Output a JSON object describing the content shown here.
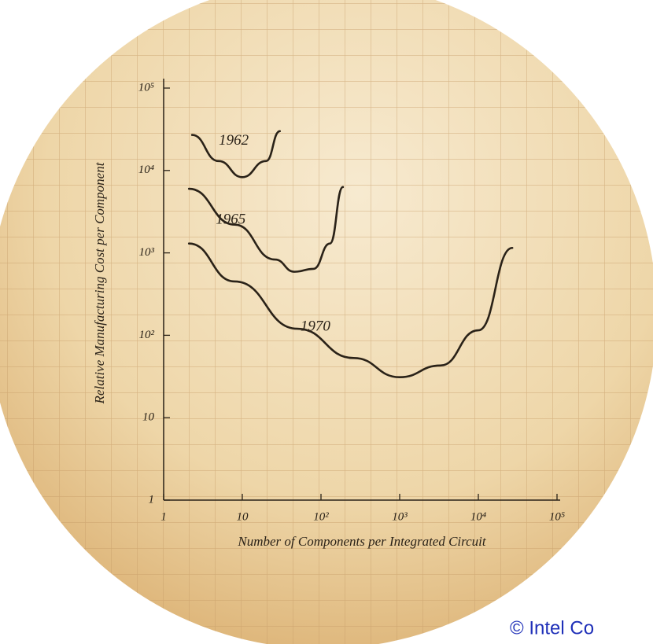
{
  "chart_data": {
    "type": "line",
    "x_label": "Number of Components per Integrated Circuit",
    "y_label": "Relative Manufacturing Cost per Component",
    "log_x": true,
    "log_y": true,
    "xlim": [
      1,
      100000
    ],
    "ylim": [
      1,
      100000
    ],
    "xticks": [
      1,
      10,
      {
        "value": 100,
        "label": "10²"
      },
      {
        "value": 1000,
        "label": "10³"
      },
      {
        "value": 10000,
        "label": "10⁴"
      },
      {
        "value": 100000,
        "label": "10⁵"
      }
    ],
    "yticks": [
      1,
      10,
      {
        "value": 100,
        "label": "10²"
      },
      {
        "value": 1000,
        "label": "10³"
      },
      {
        "value": 10000,
        "label": "10⁴"
      },
      {
        "value": 100000,
        "label": "10⁵"
      }
    ],
    "color": "#2a2218",
    "series": [
      {
        "name": "1962",
        "x": [
          2.3,
          5,
          10,
          20,
          30
        ],
        "values": [
          27000,
          13000,
          8300,
          13000,
          30000
        ]
      },
      {
        "name": "1965",
        "x": [
          2.1,
          8,
          26,
          46,
          80,
          130,
          190
        ],
        "values": [
          6000,
          2200,
          830,
          590,
          640,
          1300,
          6300
        ]
      },
      {
        "name": "1970",
        "x": [
          2.1,
          8,
          50,
          260,
          1000,
          3300,
          10000,
          27000
        ],
        "values": [
          1300,
          450,
          120,
          53,
          31,
          43,
          115,
          1150
        ]
      }
    ],
    "footer": "© Intel Co"
  }
}
